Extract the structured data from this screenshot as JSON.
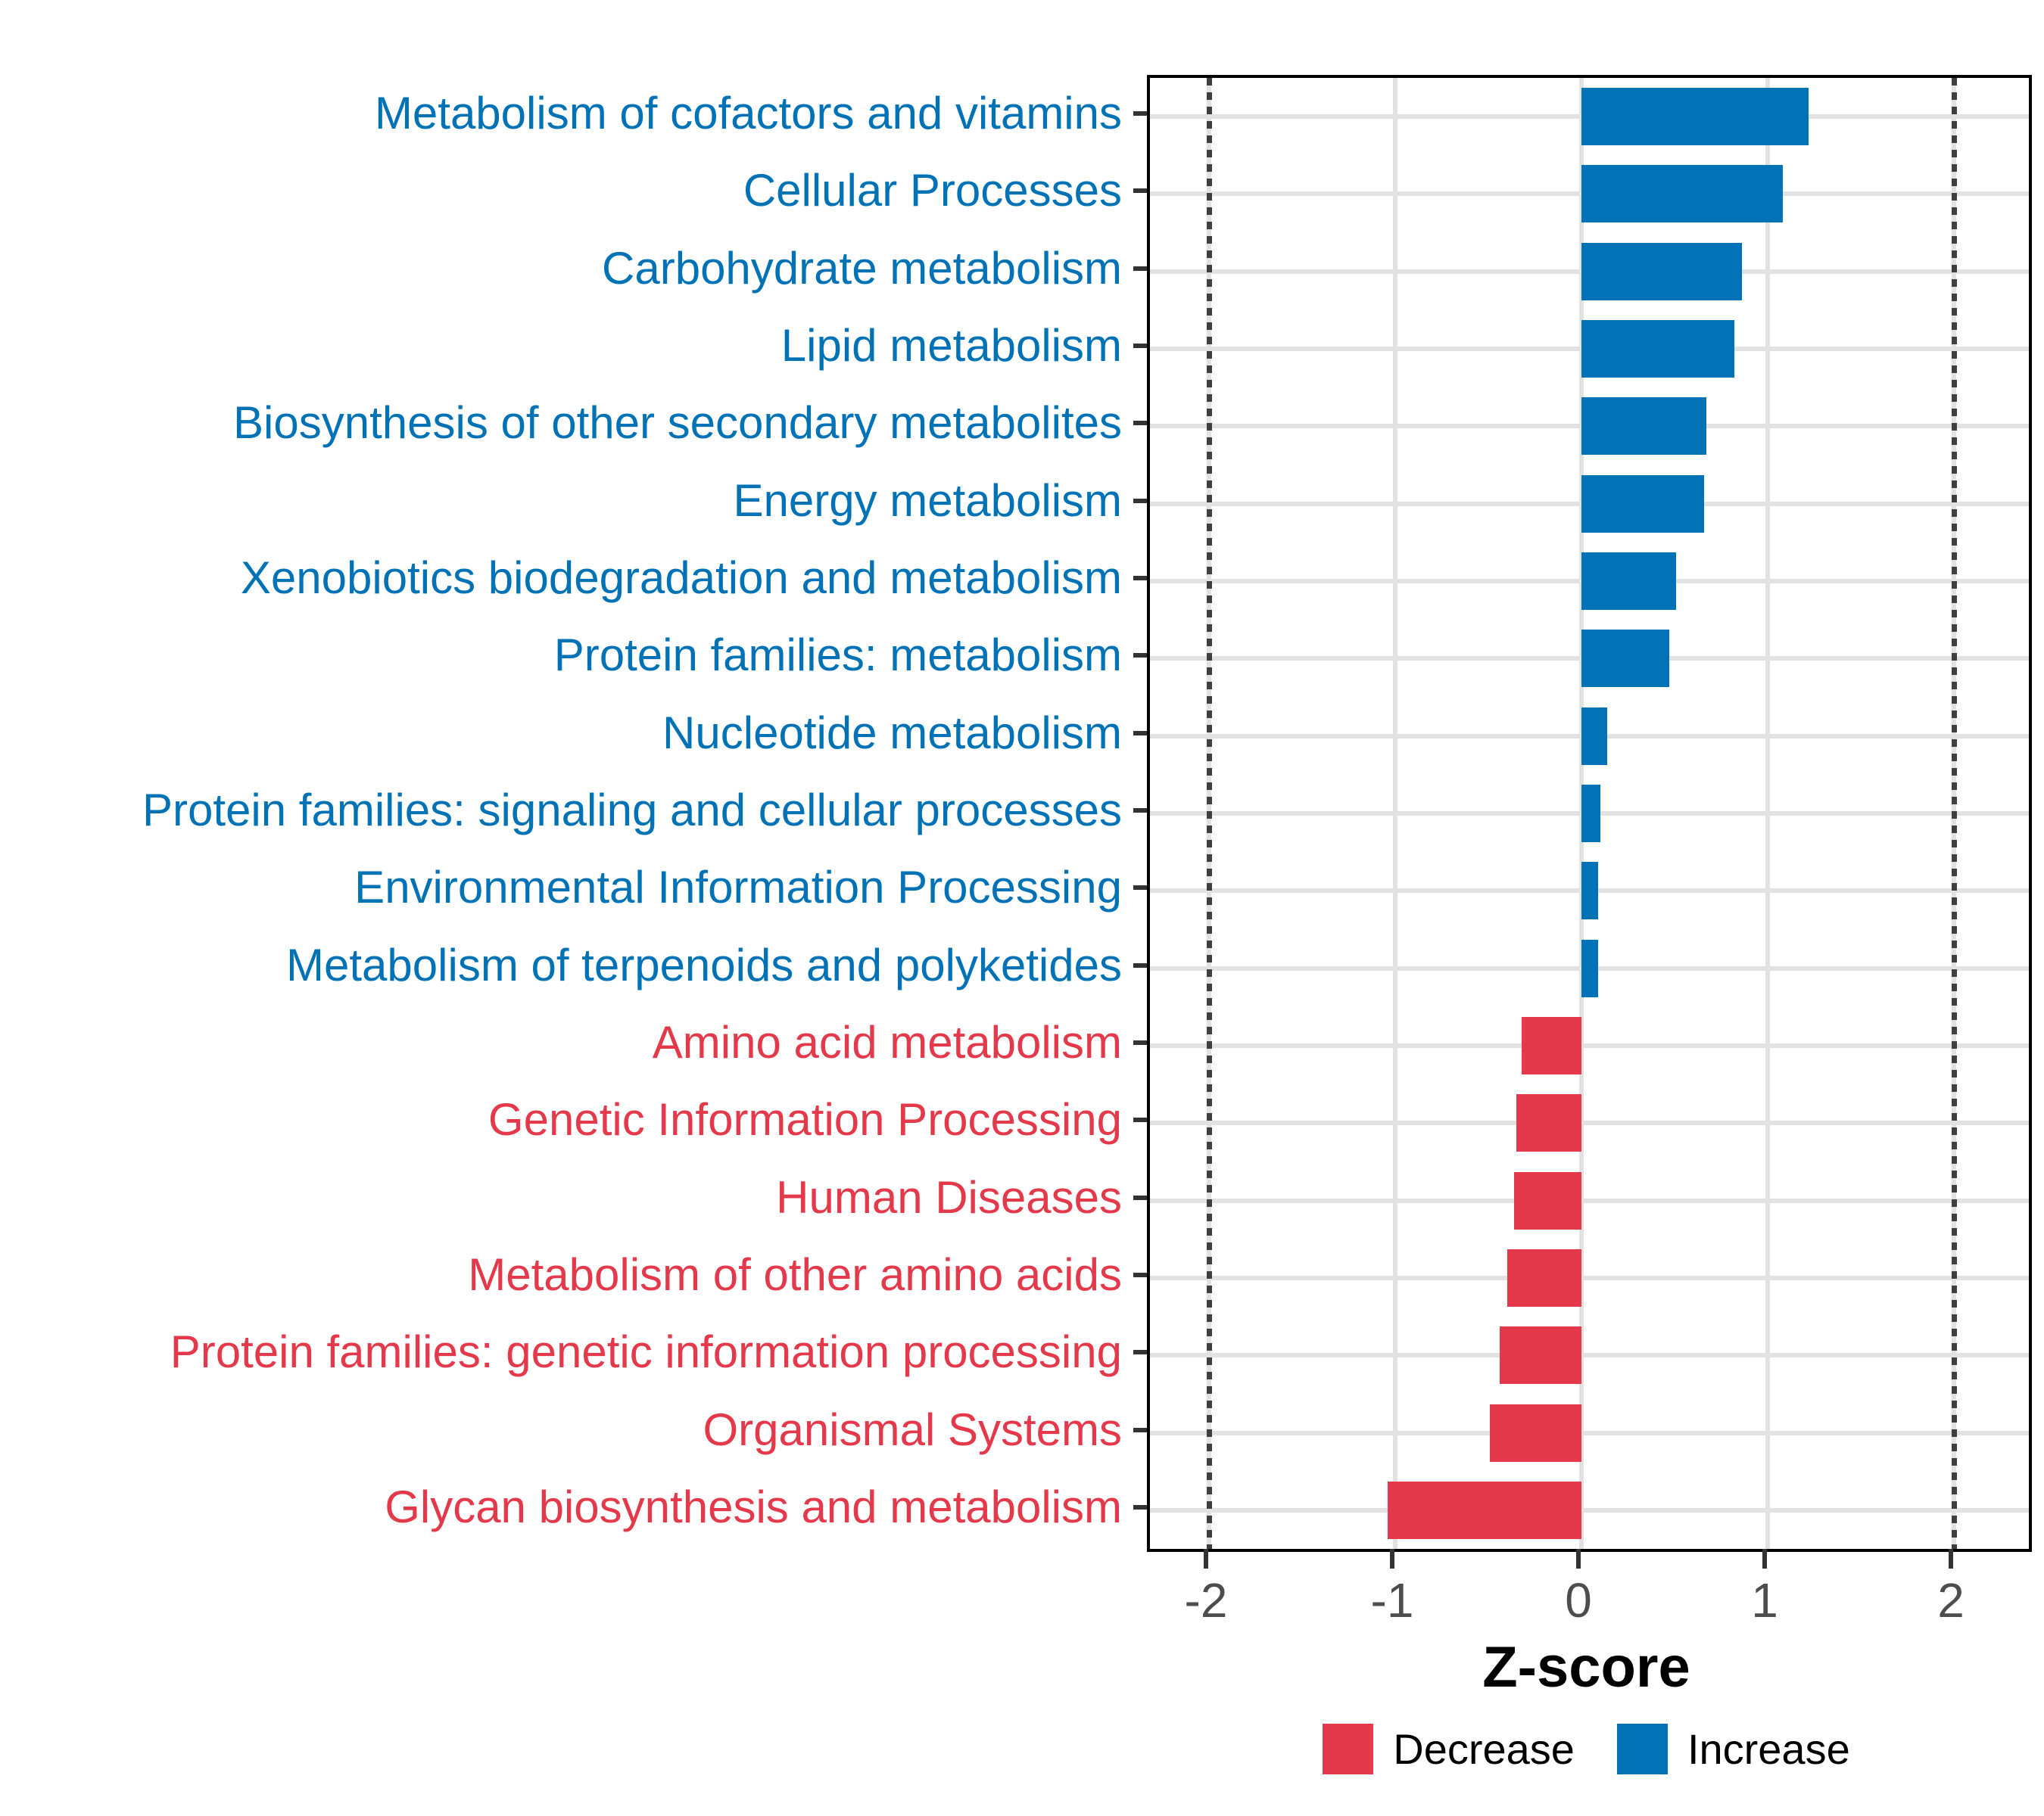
{
  "chart_data": {
    "type": "bar",
    "orientation": "horizontal",
    "xlabel": "Z-score",
    "x_ticks": [
      -2,
      -1,
      0,
      1,
      2
    ],
    "x_tick_labels": [
      "-2",
      "-1",
      "0",
      "1",
      "2"
    ],
    "xlim": [
      -2.32,
      2.4
    ],
    "dotted_reference_lines": [
      -2,
      2
    ],
    "grid": true,
    "legend_position": "bottom",
    "increase_color": "#0072B5",
    "decrease_color": "#E4394A",
    "categories": [
      "Metabolism of cofactors and vitamins",
      "Cellular Processes",
      "Carbohydrate metabolism",
      "Lipid metabolism",
      "Biosynthesis of other secondary metabolites",
      "Energy metabolism",
      "Xenobiotics biodegradation and metabolism",
      "Protein families: metabolism",
      "Nucleotide metabolism",
      "Protein families: signaling and cellular processes",
      "Environmental Information Processing",
      "Metabolism of terpenoids and polyketides",
      "Amino acid metabolism",
      "Genetic Information Processing",
      "Human Diseases",
      "Metabolism of other amino acids",
      "Protein families: genetic information processing",
      "Organismal Systems",
      "Glycan biosynthesis and metabolism"
    ],
    "values": [
      1.22,
      1.08,
      0.86,
      0.82,
      0.67,
      0.66,
      0.51,
      0.47,
      0.14,
      0.1,
      0.09,
      0.09,
      -0.32,
      -0.35,
      -0.36,
      -0.4,
      -0.44,
      -0.49,
      -1.04
    ],
    "directions": [
      "increase",
      "increase",
      "increase",
      "increase",
      "increase",
      "increase",
      "increase",
      "increase",
      "increase",
      "increase",
      "increase",
      "increase",
      "decrease",
      "decrease",
      "decrease",
      "decrease",
      "decrease",
      "decrease",
      "decrease"
    ]
  },
  "axis": {
    "x_title": "Z-score"
  },
  "legend": {
    "items": [
      {
        "label": "Decrease",
        "color": "#E4394A"
      },
      {
        "label": "Increase",
        "color": "#0072B5"
      }
    ]
  }
}
